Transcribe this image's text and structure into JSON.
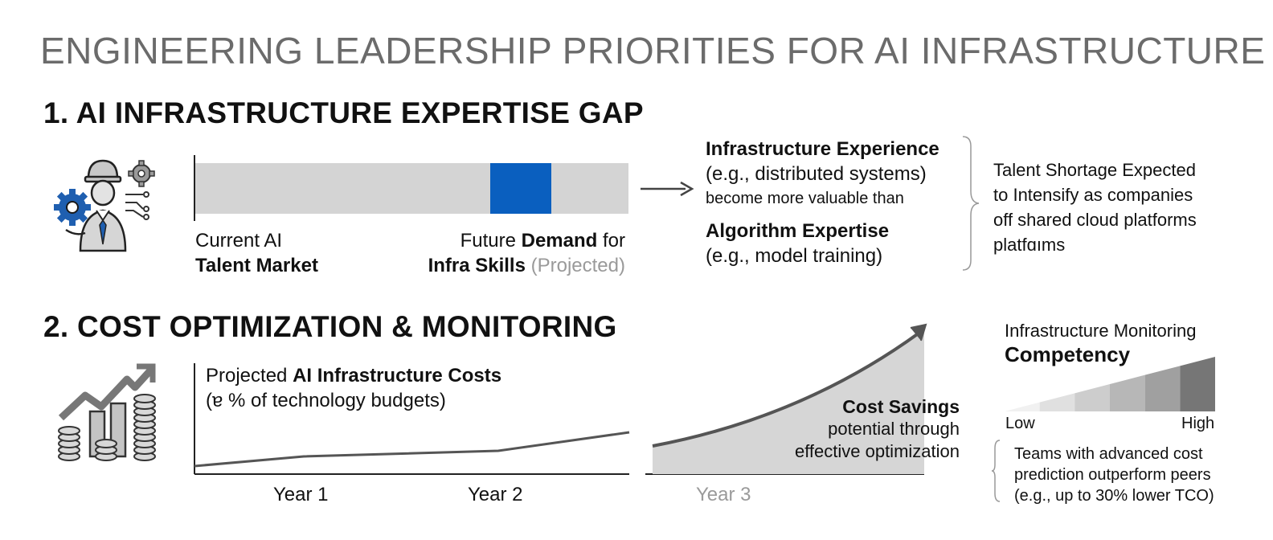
{
  "title": "ENGINEERING LEADERSHIP PRIORITIES FOR AI INFRASTRUCTURE",
  "section1": {
    "heading": "1. AI INFRASTRUCTURE EXPERTISE GAP",
    "icon": "engineer-with-gears-icon",
    "bar": {
      "current_line1": "Current AI",
      "current_line2": "Talent Market",
      "future_prefix": "Future ",
      "future_bold": "Demand",
      "future_suffix": " for",
      "infra_bold": "Infra Skills",
      "projected": " (Projected)",
      "highlight_color": "#0a5fbf",
      "bar_color": "#d4d4d4"
    },
    "comparison": {
      "infra_title": "Infrastructure Experience",
      "infra_example": "(e.g., distributed systems)",
      "middle": "become more valuable than",
      "algo_title": "Algorithm Expertise",
      "algo_example": "(e.g., model training)"
    },
    "note_lines": [
      "Talent Shortage Expected",
      "to Intensify as companies",
      "off shared cloud platforms",
      "platfɑıms"
    ]
  },
  "section2": {
    "heading": "2. COST OPTIMIZATION & MONITORING",
    "icon": "growth-chart-with-coins-icon",
    "chart_label_prefix": "Projected ",
    "chart_label_bold": "AI Infrastructure Costs",
    "chart_sublabel": "(ɐ % of technology budgets)",
    "years": [
      "Year 1",
      "Year 2",
      "Year 3"
    ],
    "savings_title": "Cost Savings",
    "savings_line1": "potential through",
    "savings_line2": "effective optimization",
    "monitoring_title": "Infrastructure Monitoring",
    "monitoring_bold": "Competency",
    "scale_low": "Low",
    "scale_high": "High",
    "scale_colors": [
      "#f1f1f1",
      "#e0e0e0",
      "#cdcdcd",
      "#b7b7b7",
      "#a0a0a0",
      "#767676"
    ],
    "teams_lines": [
      "Teams with advanced cost",
      "prediction outperform peers",
      "(e.g., up to 30% lower TCO)"
    ]
  }
}
